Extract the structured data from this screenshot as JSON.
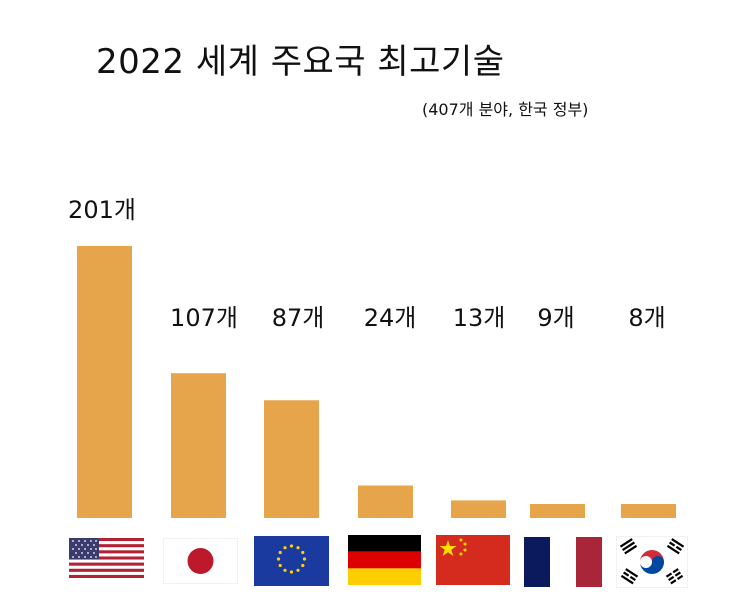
{
  "chart_data": {
    "type": "bar",
    "title": "2022 세계 주요국 최고기술",
    "subtitle": "(407개 분야, 한국 정부)",
    "categories": [
      "United States",
      "Japan",
      "European Union",
      "Germany",
      "China",
      "France",
      "South Korea"
    ],
    "values": [
      201,
      107,
      87,
      24,
      13,
      9,
      8
    ],
    "data_labels": [
      "201개",
      "107개",
      "87개",
      "24개",
      "13개",
      "9개",
      "8개"
    ],
    "category_display": "flag-icons",
    "flag_icons": [
      "us-flag-icon",
      "japan-flag-icon",
      "eu-flag-icon",
      "germany-flag-icon",
      "china-flag-icon",
      "france-flag-icon",
      "korea-flag-icon"
    ],
    "ylim": [
      0,
      201
    ],
    "grid": false,
    "legend": "none",
    "colors": {
      "bar": "#e7a54b"
    }
  }
}
